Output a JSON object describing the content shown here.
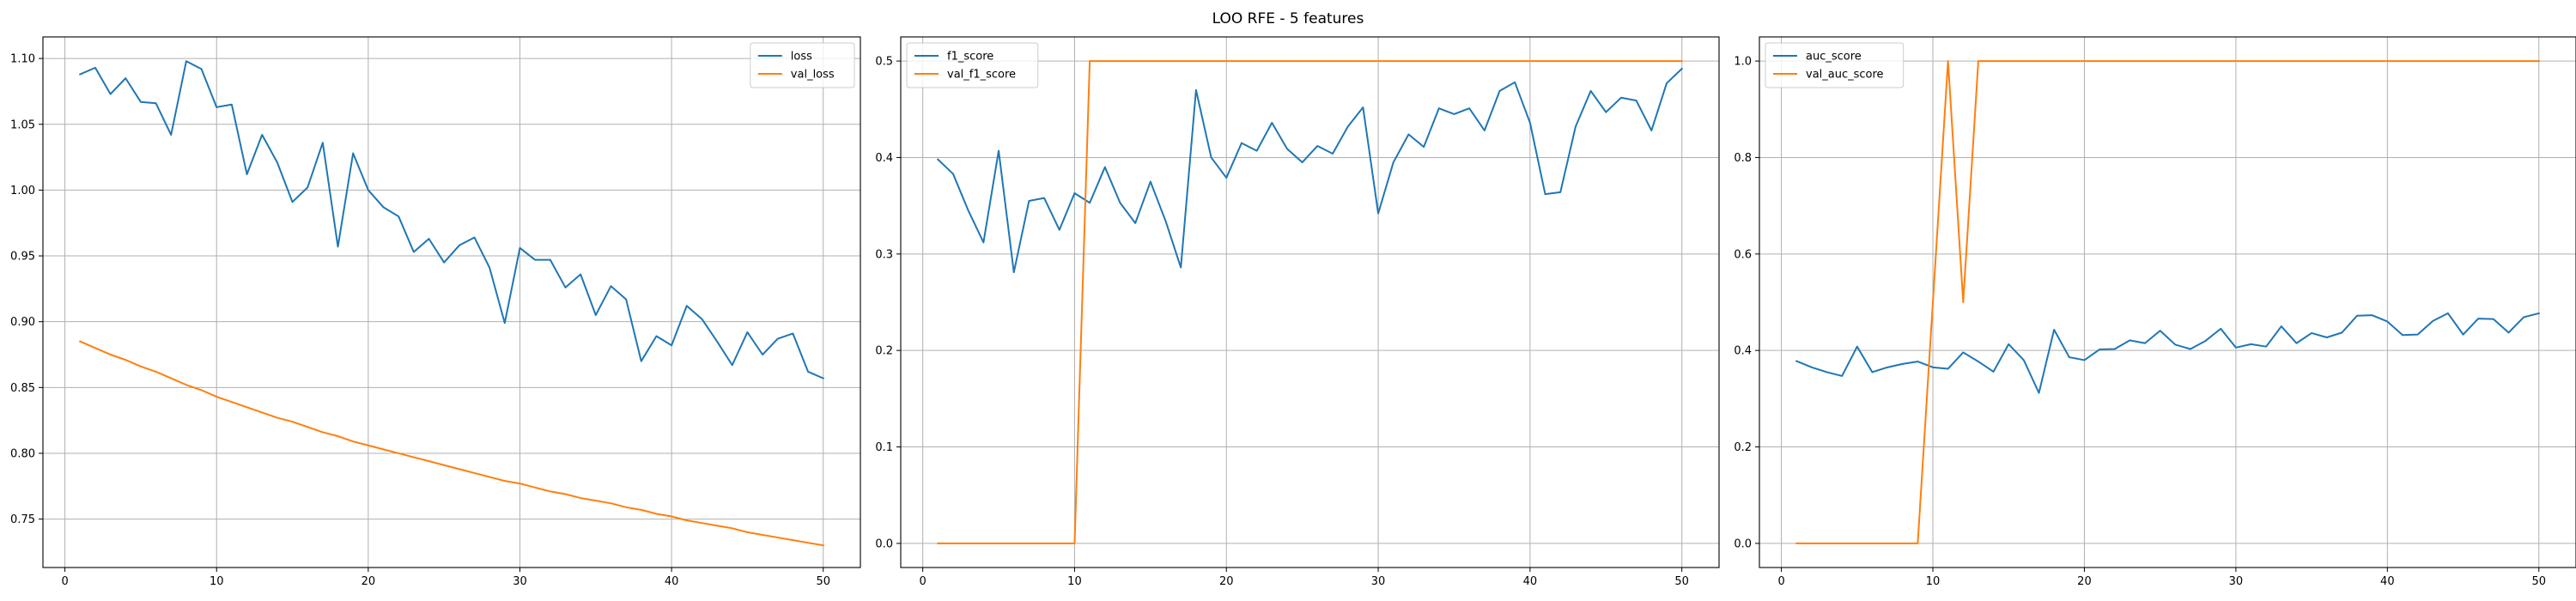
{
  "figure": {
    "title": "LOO RFE - 5 features"
  },
  "colors": {
    "blue": "#1f77b4",
    "orange": "#ff7f0e"
  },
  "chart_data": [
    {
      "type": "line",
      "title": "",
      "xlabel": "",
      "ylabel": "",
      "xlim": [
        -1.45,
        52.45
      ],
      "ylim": [
        0.7132,
        1.1164
      ],
      "xticks": [
        0,
        10,
        20,
        30,
        40,
        50
      ],
      "yticks": [
        0.75,
        0.8,
        0.85,
        0.9,
        0.95,
        1.0,
        1.05,
        1.1
      ],
      "grid": true,
      "legend": "upper right",
      "series": [
        {
          "name": "loss",
          "color": "#1f77b4",
          "x": [
            1,
            2,
            3,
            4,
            5,
            6,
            7,
            8,
            9,
            10,
            11,
            12,
            13,
            14,
            15,
            16,
            17,
            18,
            19,
            20,
            21,
            22,
            23,
            24,
            25,
            26,
            27,
            28,
            29,
            30,
            31,
            32,
            33,
            34,
            35,
            36,
            37,
            38,
            39,
            40,
            41,
            42,
            43,
            44,
            45,
            46,
            47,
            48,
            49,
            50
          ],
          "y": [
            1.088,
            1.093,
            1.073,
            1.085,
            1.067,
            1.066,
            1.042,
            1.098,
            1.092,
            1.063,
            1.065,
            1.012,
            1.042,
            1.021,
            0.991,
            1.002,
            1.036,
            0.957,
            1.028,
            1.0,
            0.987,
            0.98,
            0.953,
            0.963,
            0.945,
            0.958,
            0.964,
            0.941,
            0.899,
            0.956,
            0.947,
            0.947,
            0.926,
            0.936,
            0.905,
            0.927,
            0.917,
            0.87,
            0.889,
            0.882,
            0.912,
            0.902,
            0.885,
            0.867,
            0.892,
            0.875,
            0.887,
            0.891,
            0.862,
            0.857
          ]
        },
        {
          "name": "val_loss",
          "color": "#ff7f0e",
          "x": [
            1,
            2,
            3,
            4,
            5,
            6,
            7,
            8,
            9,
            10,
            11,
            12,
            13,
            14,
            15,
            16,
            17,
            18,
            19,
            20,
            21,
            22,
            23,
            24,
            25,
            26,
            27,
            28,
            29,
            30,
            31,
            32,
            33,
            34,
            35,
            36,
            37,
            38,
            39,
            40,
            41,
            42,
            43,
            44,
            45,
            46,
            47,
            48,
            49,
            50
          ],
          "y": [
            0.885,
            0.88,
            0.875,
            0.871,
            0.866,
            0.862,
            0.857,
            0.852,
            0.848,
            0.843,
            0.839,
            0.835,
            0.831,
            0.827,
            0.824,
            0.82,
            0.816,
            0.813,
            0.809,
            0.806,
            0.803,
            0.8,
            0.797,
            0.794,
            0.791,
            0.788,
            0.785,
            0.782,
            0.779,
            0.777,
            0.774,
            0.771,
            0.769,
            0.766,
            0.764,
            0.762,
            0.759,
            0.757,
            0.754,
            0.752,
            0.749,
            0.747,
            0.745,
            0.743,
            0.74,
            0.738,
            0.736,
            0.734,
            0.732,
            0.73
          ]
        }
      ]
    },
    {
      "type": "line",
      "title": "",
      "xlabel": "",
      "ylabel": "",
      "xlim": [
        -1.45,
        52.45
      ],
      "ylim": [
        -0.025,
        0.525
      ],
      "xticks": [
        0,
        10,
        20,
        30,
        40,
        50
      ],
      "yticks": [
        0.0,
        0.1,
        0.2,
        0.3,
        0.4,
        0.5
      ],
      "grid": true,
      "legend": "upper left",
      "series": [
        {
          "name": "f1_score",
          "color": "#1f77b4",
          "x": [
            1,
            2,
            3,
            4,
            5,
            6,
            7,
            8,
            9,
            10,
            11,
            12,
            13,
            14,
            15,
            16,
            17,
            18,
            19,
            20,
            21,
            22,
            23,
            24,
            25,
            26,
            27,
            28,
            29,
            30,
            31,
            32,
            33,
            34,
            35,
            36,
            37,
            38,
            39,
            40,
            41,
            42,
            43,
            44,
            45,
            46,
            47,
            48,
            49,
            50
          ],
          "y": [
            0.398,
            0.383,
            0.345,
            0.312,
            0.407,
            0.281,
            0.355,
            0.358,
            0.325,
            0.363,
            0.353,
            0.39,
            0.353,
            0.332,
            0.375,
            0.334,
            0.286,
            0.47,
            0.4,
            0.379,
            0.415,
            0.407,
            0.436,
            0.409,
            0.395,
            0.412,
            0.404,
            0.432,
            0.452,
            0.342,
            0.395,
            0.424,
            0.411,
            0.451,
            0.445,
            0.451,
            0.428,
            0.469,
            0.478,
            0.436,
            0.362,
            0.364,
            0.432,
            0.469,
            0.447,
            0.462,
            0.459,
            0.428,
            0.477,
            0.492
          ]
        },
        {
          "name": "val_f1_score",
          "color": "#ff7f0e",
          "x": [
            1,
            2,
            3,
            4,
            5,
            6,
            7,
            8,
            9,
            10,
            11,
            12,
            13,
            14,
            15,
            16,
            17,
            18,
            19,
            20,
            21,
            22,
            23,
            24,
            25,
            26,
            27,
            28,
            29,
            30,
            31,
            32,
            33,
            34,
            35,
            36,
            37,
            38,
            39,
            40,
            41,
            42,
            43,
            44,
            45,
            46,
            47,
            48,
            49,
            50
          ],
          "y": [
            0,
            0,
            0,
            0,
            0,
            0,
            0,
            0,
            0,
            0,
            0.5,
            0.5,
            0.5,
            0.5,
            0.5,
            0.5,
            0.5,
            0.5,
            0.5,
            0.5,
            0.5,
            0.5,
            0.5,
            0.5,
            0.5,
            0.5,
            0.5,
            0.5,
            0.5,
            0.5,
            0.5,
            0.5,
            0.5,
            0.5,
            0.5,
            0.5,
            0.5,
            0.5,
            0.5,
            0.5,
            0.5,
            0.5,
            0.5,
            0.5,
            0.5,
            0.5,
            0.5,
            0.5,
            0.5,
            0.5
          ]
        }
      ]
    },
    {
      "type": "line",
      "title": "",
      "xlabel": "",
      "ylabel": "",
      "xlim": [
        -1.45,
        52.45
      ],
      "ylim": [
        -0.05,
        1.05
      ],
      "xticks": [
        0,
        10,
        20,
        30,
        40,
        50
      ],
      "yticks": [
        0.0,
        0.2,
        0.4,
        0.6,
        0.8,
        1.0
      ],
      "grid": true,
      "legend": "upper left",
      "series": [
        {
          "name": "auc_score",
          "color": "#1f77b4",
          "x": [
            1,
            2,
            3,
            4,
            5,
            6,
            7,
            8,
            9,
            10,
            11,
            12,
            13,
            14,
            15,
            16,
            17,
            18,
            19,
            20,
            21,
            22,
            23,
            24,
            25,
            26,
            27,
            28,
            29,
            30,
            31,
            32,
            33,
            34,
            35,
            36,
            37,
            38,
            39,
            40,
            41,
            42,
            43,
            44,
            45,
            46,
            47,
            48,
            49,
            50
          ],
          "y": [
            0.378,
            0.365,
            0.355,
            0.347,
            0.408,
            0.355,
            0.365,
            0.372,
            0.377,
            0.365,
            0.362,
            0.396,
            0.377,
            0.356,
            0.413,
            0.38,
            0.312,
            0.443,
            0.386,
            0.38,
            0.402,
            0.403,
            0.421,
            0.415,
            0.441,
            0.412,
            0.403,
            0.42,
            0.445,
            0.406,
            0.413,
            0.408,
            0.45,
            0.415,
            0.436,
            0.427,
            0.437,
            0.472,
            0.473,
            0.46,
            0.432,
            0.433,
            0.461,
            0.477,
            0.433,
            0.466,
            0.465,
            0.437,
            0.469,
            0.477
          ]
        },
        {
          "name": "val_auc_score",
          "color": "#ff7f0e",
          "x": [
            1,
            2,
            3,
            4,
            5,
            6,
            7,
            8,
            9,
            10,
            11,
            12,
            13,
            14,
            15,
            16,
            17,
            18,
            19,
            20,
            21,
            22,
            23,
            24,
            25,
            26,
            27,
            28,
            29,
            30,
            31,
            32,
            33,
            34,
            35,
            36,
            37,
            38,
            39,
            40,
            41,
            42,
            43,
            44,
            45,
            46,
            47,
            48,
            49,
            50
          ],
          "y": [
            0,
            0,
            0,
            0,
            0,
            0,
            0,
            0,
            0,
            0.5,
            1.0,
            0.5,
            1.0,
            1.0,
            1.0,
            1.0,
            1.0,
            1.0,
            1.0,
            1.0,
            1.0,
            1.0,
            1.0,
            1.0,
            1.0,
            1.0,
            1.0,
            1.0,
            1.0,
            1.0,
            1.0,
            1.0,
            1.0,
            1.0,
            1.0,
            1.0,
            1.0,
            1.0,
            1.0,
            1.0,
            1.0,
            1.0,
            1.0,
            1.0,
            1.0,
            1.0,
            1.0,
            1.0,
            1.0,
            1.0
          ]
        }
      ]
    }
  ]
}
